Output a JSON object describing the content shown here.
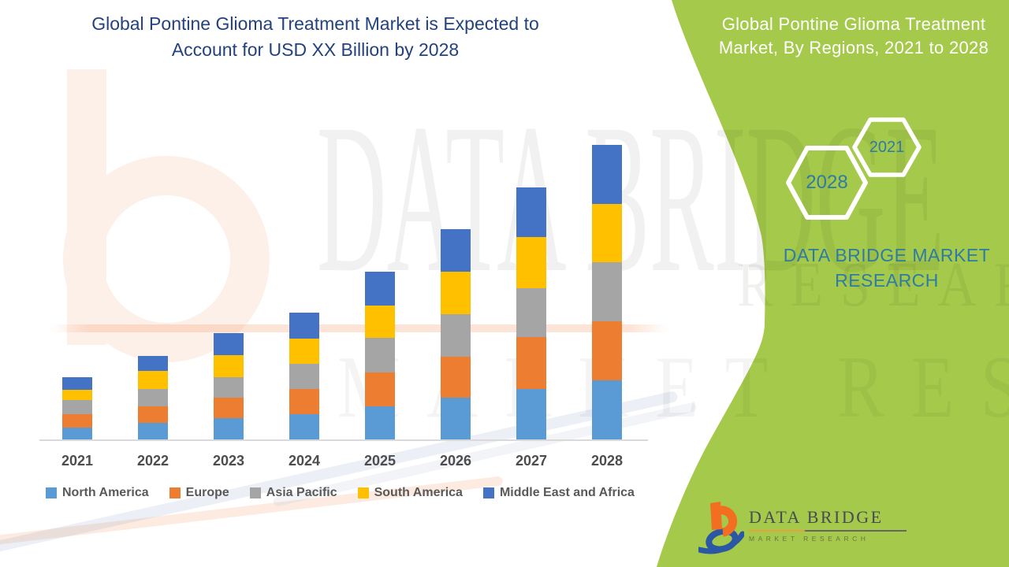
{
  "main_title": {
    "line1": "Global Pontine Glioma Treatment Market is Expected to",
    "line2": "Account for USD XX Billion by 2028",
    "color": "#24427C"
  },
  "side_panel": {
    "background_color": "#A5C94B",
    "title_line1": "Global Pontine Glioma Treatment",
    "title_line2": "Market, By Regions, 2021 to 2028",
    "title_color": "#FFFFFF",
    "hexagons": [
      {
        "label": "2021"
      },
      {
        "label": "2028"
      }
    ],
    "hexagon_label_color": "#2E7BA4",
    "brand_text_line1": "DATA BRIDGE MARKET",
    "brand_text_line2": "RESEARCH",
    "brand_text_color": "#2E7BA4"
  },
  "logo": {
    "title": "DATA BRIDGE",
    "subtitle": "MARKET RESEARCH",
    "orange": "#F26E21",
    "blue": "#2B57A5"
  },
  "watermark": {
    "row1": "DATA BRIDGE",
    "row2": "MARKET RESEARCH",
    "row3": "RESEARCH"
  },
  "chart_data": {
    "type": "bar",
    "stacked": true,
    "title": "Global Pontine Glioma Treatment Market, By Regions, 2021 to 2028",
    "xlabel": "",
    "ylabel": "",
    "grid": false,
    "legend_position": "bottom-left",
    "value_axis_visible": false,
    "units": "relative units (no numeric value axis shown; values estimated from bar heights)",
    "categories": [
      "2021",
      "2022",
      "2023",
      "2024",
      "2025",
      "2026",
      "2027",
      "2028"
    ],
    "series": [
      {
        "name": "North America",
        "color": "#5B9BD5",
        "values": [
          15,
          21,
          27,
          32,
          42,
          53,
          64,
          75
        ]
      },
      {
        "name": "Europe",
        "color": "#ED7D31",
        "values": [
          17,
          21,
          26,
          32,
          43,
          52,
          66,
          75
        ]
      },
      {
        "name": "Asia Pacific",
        "color": "#A5A5A5",
        "values": [
          18,
          22,
          26,
          32,
          44,
          54,
          62,
          75
        ]
      },
      {
        "name": "South America",
        "color": "#FFC000",
        "values": [
          13,
          23,
          28,
          32,
          41,
          54,
          65,
          74
        ]
      },
      {
        "name": "Middle East and Africa",
        "color": "#4472C4",
        "values": [
          16,
          19,
          28,
          33,
          43,
          54,
          63,
          75
        ]
      }
    ],
    "totals": [
      79,
      106,
      135,
      161,
      213,
      268,
      320,
      374
    ]
  }
}
